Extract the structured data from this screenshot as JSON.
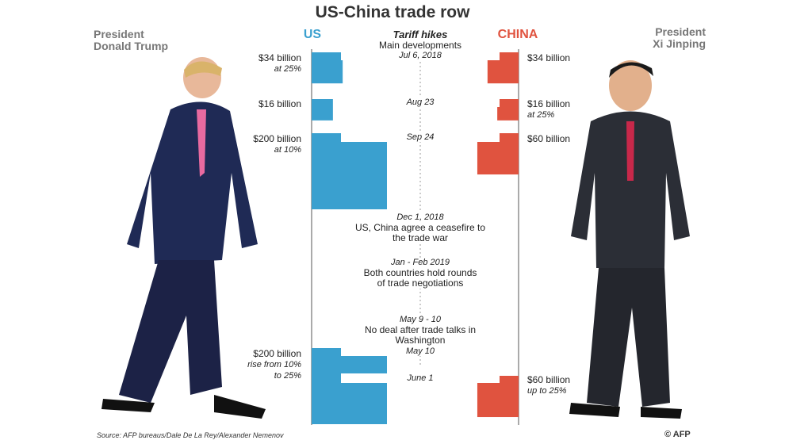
{
  "title": "US-China trade row",
  "leaders": {
    "us": [
      "President",
      "Donald Trump"
    ],
    "china": [
      "President",
      "Xi Jinping"
    ]
  },
  "headers": {
    "us": "US",
    "china": "CHINA"
  },
  "axis": {
    "title": "Tariff hikes",
    "subtitle": "Main developments"
  },
  "colors": {
    "us": "#3aa0cf",
    "china": "#e0533f",
    "axis": "#555555"
  },
  "chart_data": {
    "type": "bar",
    "title": "US-China trade row",
    "units": "billion",
    "events": [
      {
        "date": "Jul 6, 2018",
        "us": 34,
        "us_label": "$34 billion",
        "us_note": "at 25%",
        "china": 34,
        "china_label": "$34 billion",
        "china_note": ""
      },
      {
        "date": "Aug 23",
        "us": 16,
        "us_label": "$16 billion",
        "us_note": "",
        "china": 16,
        "china_label": "$16 billion",
        "china_note": "at 25%"
      },
      {
        "date": "Sep 24",
        "us": 200,
        "us_label": "$200 billion",
        "us_note": "at 10%",
        "china": 60,
        "china_label": "$60 billion",
        "china_note": ""
      },
      {
        "date": "May 10",
        "us": 200,
        "us_label": "$200 billion",
        "us_note": "rise from 10% to 25%",
        "china": null
      },
      {
        "date": "June 1",
        "us": null,
        "china": 60,
        "china_label": "$60 billion",
        "china_note": "up to 25%"
      }
    ],
    "annotations": [
      {
        "date": "Dec 1, 2018",
        "text": "US, China agree a ceasefire to the trade war"
      },
      {
        "date": "Jan - Feb 2019",
        "text": "Both countries hold rounds of trade negotiations"
      },
      {
        "date": "May 9 - 10",
        "text": "No deal after trade talks in Washington"
      }
    ]
  },
  "labels": {
    "us_note_may_1": "rise from 10%",
    "us_note_may_2": "to 25%",
    "event_ceasefire_1": "US, China agree a ceasefire to",
    "event_ceasefire_2": "the trade war",
    "event_talks_1": "Both countries hold rounds",
    "event_talks_2": "of trade negotiations",
    "event_nodeal": "No deal after trade talks in Washington"
  },
  "source": "Source: AFP bureaus/Dale De La Rey/Alexander Nemenov",
  "credit": "© AFP"
}
